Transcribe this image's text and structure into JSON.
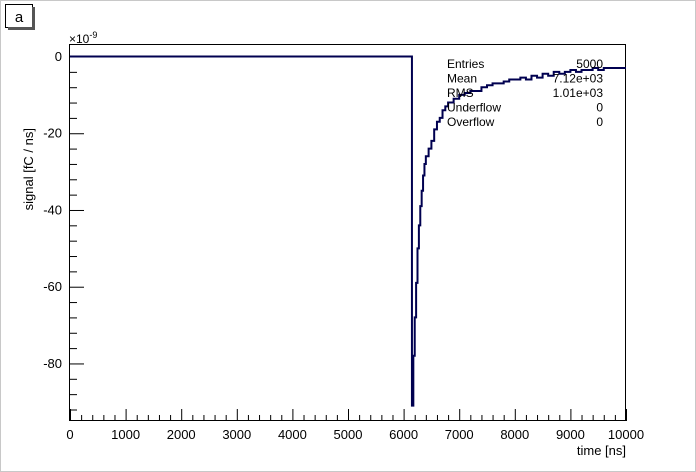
{
  "panel_label": "a",
  "chart_data": {
    "type": "line",
    "style": "step",
    "xlabel": "time [ns]",
    "ylabel": "signal [fC / ns]",
    "y_multiplier": "×10",
    "y_exponent": "-9",
    "xlim": [
      0,
      10000
    ],
    "ylim": [
      -95,
      3
    ],
    "x_ticks": [
      0,
      1000,
      2000,
      3000,
      4000,
      5000,
      6000,
      7000,
      8000,
      9000,
      10000
    ],
    "y_ticks": [
      0,
      -20,
      -40,
      -60,
      -80
    ],
    "grid": false,
    "line_color": "#000050",
    "series": [
      {
        "x": [
          0,
          6150,
          6175,
          6200,
          6225,
          6250,
          6275,
          6300,
          6325,
          6350,
          6375,
          6400,
          6450,
          6500,
          6550,
          6600,
          6650,
          6700,
          6750,
          6800,
          6900,
          7000,
          7100,
          7200,
          7300,
          7400,
          7500,
          7600,
          7700,
          7800,
          7900,
          8000,
          8100,
          8200,
          8300,
          8400,
          8500,
          8600,
          8700,
          8800,
          8900,
          9000,
          9100,
          9200,
          9300,
          9400,
          9500,
          9600,
          9700,
          9800,
          9900,
          10000
        ],
        "y": [
          0,
          -91,
          -78,
          -68,
          -59,
          -50,
          -44,
          -39,
          -35,
          -31,
          -28,
          -26,
          -24,
          -22,
          -19,
          -17,
          -16,
          -14,
          -13,
          -12,
          -11,
          -10,
          -9.5,
          -9,
          -9,
          -8,
          -7.5,
          -7,
          -7,
          -6.5,
          -6,
          -6,
          -5.5,
          -6,
          -5,
          -5.5,
          -4.5,
          -5,
          -4,
          -4.5,
          -4,
          -3.5,
          -4,
          -3.5,
          -3.5,
          -3,
          -3.5,
          -3,
          -3,
          -3,
          -3,
          -3
        ]
      }
    ]
  },
  "stats": {
    "rows": [
      {
        "label": "Entries",
        "value": "5000"
      },
      {
        "label": "Mean",
        "value": "7.12e+03"
      },
      {
        "label": "RMS",
        "value": "1.01e+03"
      },
      {
        "label": "Underflow",
        "value": "0"
      },
      {
        "label": "Overflow",
        "value": "0"
      }
    ]
  }
}
